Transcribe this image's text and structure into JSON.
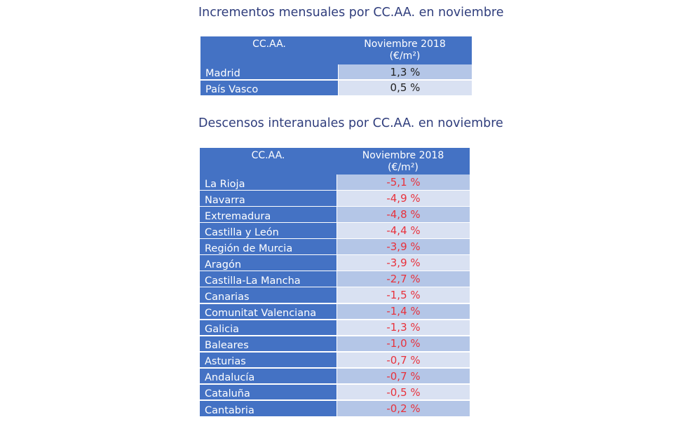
{
  "sections": [
    {
      "title": "Incrementos mensuales por CC.AA. en noviembre",
      "table": {
        "header": {
          "region": "CC.AA.",
          "value": [
            "Noviembre 2018",
            "(€/m²)"
          ]
        },
        "rows": [
          [
            "Madrid",
            "1,3 %"
          ],
          [
            "País Vasco",
            "0,5 %"
          ]
        ]
      }
    },
    {
      "title": "Descensos interanuales por CC.AA. en noviembre",
      "table": {
        "header": {
          "region": "CC.AA.",
          "value": [
            "Noviembre 2018",
            "(€/m²)"
          ]
        },
        "rows": [
          [
            "La Rioja",
            "-5,1 %"
          ],
          [
            "Navarra",
            "-4,9 %"
          ],
          [
            "Extremadura",
            "-4,8 %"
          ],
          [
            "Castilla y León",
            "-4,4 %"
          ],
          [
            "Región de Murcia",
            "-3,9 %"
          ],
          [
            "Aragón",
            "-3,9 %"
          ],
          [
            "Castilla-La Mancha",
            "-2,7 %"
          ],
          [
            "Canarias",
            "-1,5 %"
          ],
          [
            "Comunitat Valenciana",
            "-1,4 %"
          ],
          [
            "Galicia",
            "-1,3 %"
          ],
          [
            "Baleares",
            "-1,0 %"
          ],
          [
            "Asturias",
            "-0,7 %"
          ],
          [
            "Andalucía",
            "-0,7 %"
          ],
          [
            "Cataluña",
            "-0,5 %"
          ],
          [
            "Cantabria",
            "-0,2 %"
          ]
        ]
      }
    }
  ]
}
